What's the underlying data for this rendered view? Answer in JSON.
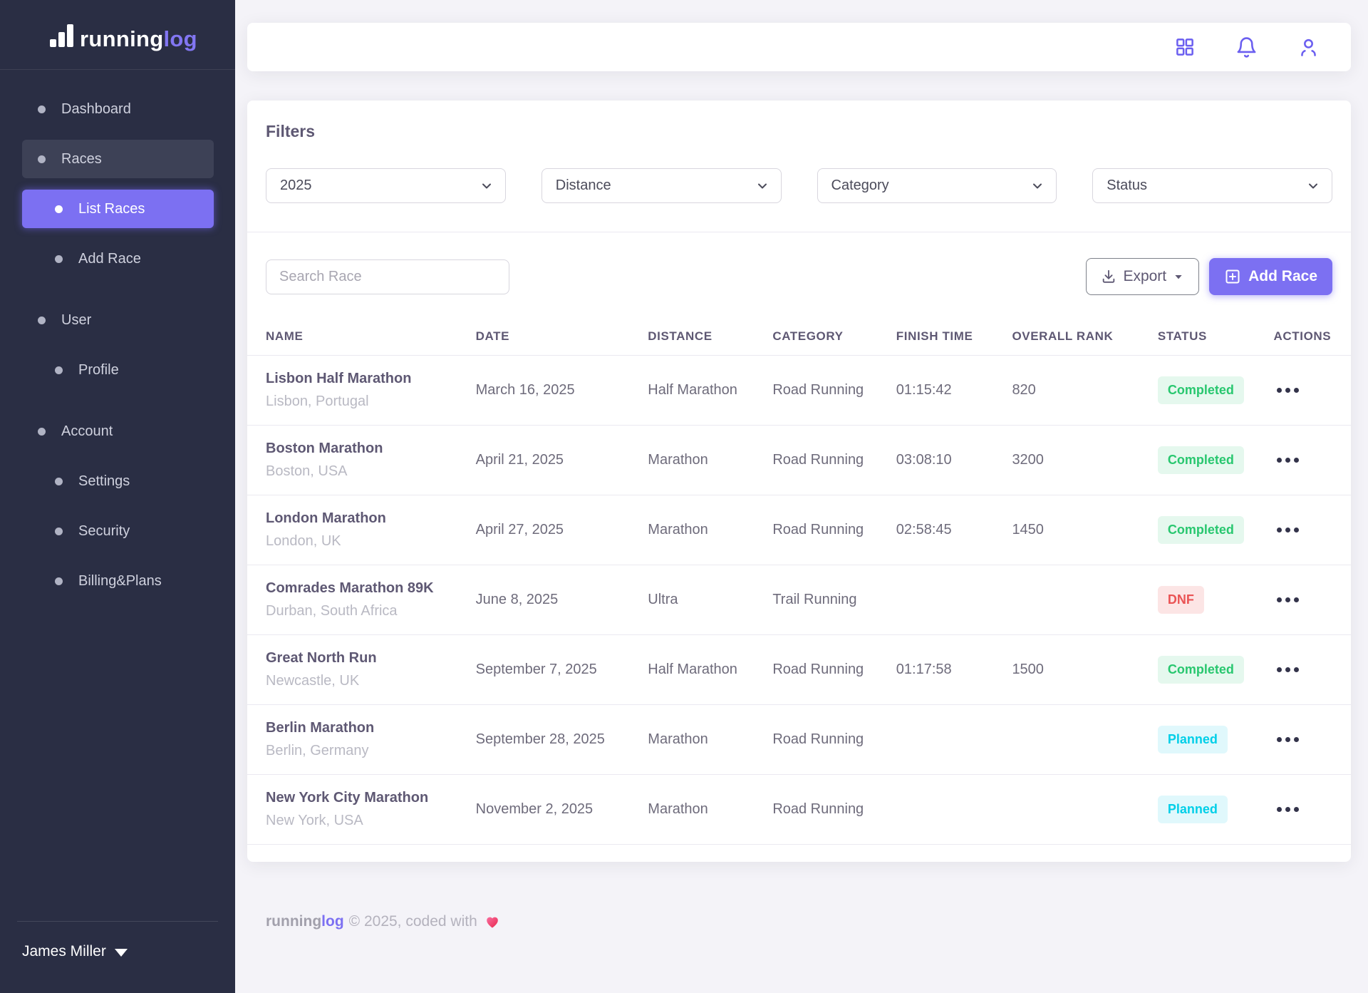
{
  "brand": {
    "primary": "running",
    "secondary": "log"
  },
  "sidebar": {
    "items": [
      {
        "label": "Dashboard",
        "slug": "dashboard",
        "level": 1,
        "state": "none",
        "section_gap": false
      },
      {
        "label": "Races",
        "slug": "races",
        "level": 1,
        "state": "highlight",
        "section_gap": false
      },
      {
        "label": "List Races",
        "slug": "list-races",
        "level": 2,
        "state": "active",
        "section_gap": false
      },
      {
        "label": "Add Race",
        "slug": "add-race",
        "level": 2,
        "state": "none",
        "section_gap": false
      },
      {
        "label": "User",
        "slug": "user",
        "level": 1,
        "state": "none",
        "section_gap": true
      },
      {
        "label": "Profile",
        "slug": "profile",
        "level": 2,
        "state": "none",
        "section_gap": false
      },
      {
        "label": "Account",
        "slug": "account",
        "level": 1,
        "state": "none",
        "section_gap": true
      },
      {
        "label": "Settings",
        "slug": "settings",
        "level": 2,
        "state": "none",
        "section_gap": false
      },
      {
        "label": "Security",
        "slug": "security",
        "level": 2,
        "state": "none",
        "section_gap": false
      },
      {
        "label": "Billing&Plans",
        "slug": "billing-plans",
        "level": 2,
        "state": "none",
        "section_gap": false
      }
    ],
    "user_name": "James Miller"
  },
  "filters": {
    "title": "Filters",
    "selects": [
      {
        "name": "year",
        "value": "2025"
      },
      {
        "name": "distance",
        "value": "Distance"
      },
      {
        "name": "category",
        "value": "Category"
      },
      {
        "name": "status",
        "value": "Status"
      }
    ]
  },
  "toolbar": {
    "search_placeholder": "Search Race",
    "export_label": "Export",
    "add_race_label": "Add Race"
  },
  "table": {
    "columns": [
      "NAME",
      "DATE",
      "DISTANCE",
      "CATEGORY",
      "FINISH TIME",
      "OVERALL RANK",
      "STATUS",
      "ACTIONS"
    ],
    "rows": [
      {
        "name": "Lisbon Half Marathon",
        "location": "Lisbon, Portugal",
        "date": "March 16, 2025",
        "distance": "Half Marathon",
        "category": "Road Running",
        "finish_time": "01:15:42",
        "overall_rank": "820",
        "status": "Completed",
        "status_type": "completed"
      },
      {
        "name": "Boston Marathon",
        "location": "Boston, USA",
        "date": "April 21, 2025",
        "distance": "Marathon",
        "category": "Road Running",
        "finish_time": "03:08:10",
        "overall_rank": "3200",
        "status": "Completed",
        "status_type": "completed"
      },
      {
        "name": "London Marathon",
        "location": "London, UK",
        "date": "April 27, 2025",
        "distance": "Marathon",
        "category": "Road Running",
        "finish_time": "02:58:45",
        "overall_rank": "1450",
        "status": "Completed",
        "status_type": "completed"
      },
      {
        "name": "Comrades Marathon 89K",
        "location": "Durban, South Africa",
        "date": "June 8, 2025",
        "distance": "Ultra",
        "category": "Trail Running",
        "finish_time": "",
        "overall_rank": "",
        "status": "DNF",
        "status_type": "dnf"
      },
      {
        "name": "Great North Run",
        "location": "Newcastle, UK",
        "date": "September 7, 2025",
        "distance": "Half Marathon",
        "category": "Road Running",
        "finish_time": "01:17:58",
        "overall_rank": "1500",
        "status": "Completed",
        "status_type": "completed"
      },
      {
        "name": "Berlin Marathon",
        "location": "Berlin, Germany",
        "date": "September 28, 2025",
        "distance": "Marathon",
        "category": "Road Running",
        "finish_time": "",
        "overall_rank": "",
        "status": "Planned",
        "status_type": "planned"
      },
      {
        "name": "New York City Marathon",
        "location": "New York, USA",
        "date": "November 2, 2025",
        "distance": "Marathon",
        "category": "Road Running",
        "finish_time": "",
        "overall_rank": "",
        "status": "Planned",
        "status_type": "planned"
      }
    ]
  },
  "footer": {
    "text": "© 2025, coded with"
  },
  "colors": {
    "accent": "#7c70f2",
    "sidebar_bg": "#2a2e44",
    "status": {
      "completed": {
        "bg": "#e5f8ee",
        "text": "#28c76f"
      },
      "dnf": {
        "bg": "#fce5e5",
        "text": "#ea5455"
      },
      "planned": {
        "bg": "#e0f8fc",
        "text": "#00cfe8"
      }
    }
  }
}
